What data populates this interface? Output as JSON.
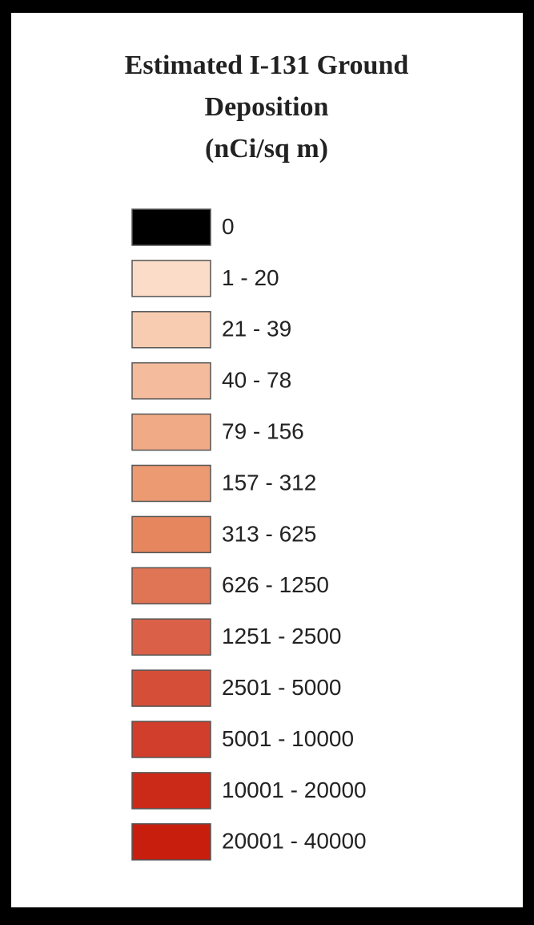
{
  "legend": {
    "title_lines": [
      "Estimated I-131 Ground",
      "Deposition",
      "(nCi/sq m)"
    ],
    "items": [
      {
        "label": "0",
        "color": "#000000"
      },
      {
        "label": "1 - 20",
        "color": "#fbdcc8"
      },
      {
        "label": "21 - 39",
        "color": "#f7ccb0"
      },
      {
        "label": "40 - 78",
        "color": "#f4bc9c"
      },
      {
        "label": "79 - 156",
        "color": "#f0ab86"
      },
      {
        "label": "157 - 312",
        "color": "#ec9a72"
      },
      {
        "label": "313 - 625",
        "color": "#e5865f"
      },
      {
        "label": "626 - 1250",
        "color": "#e07556"
      },
      {
        "label": "1251 - 2500",
        "color": "#da6148"
      },
      {
        "label": "2501 - 5000",
        "color": "#d54e38"
      },
      {
        "label": "5001 - 10000",
        "color": "#d23e2c"
      },
      {
        "label": "10001 - 20000",
        "color": "#cc2a19"
      },
      {
        "label": "20001 - 40000",
        "color": "#c81e0e"
      }
    ]
  }
}
